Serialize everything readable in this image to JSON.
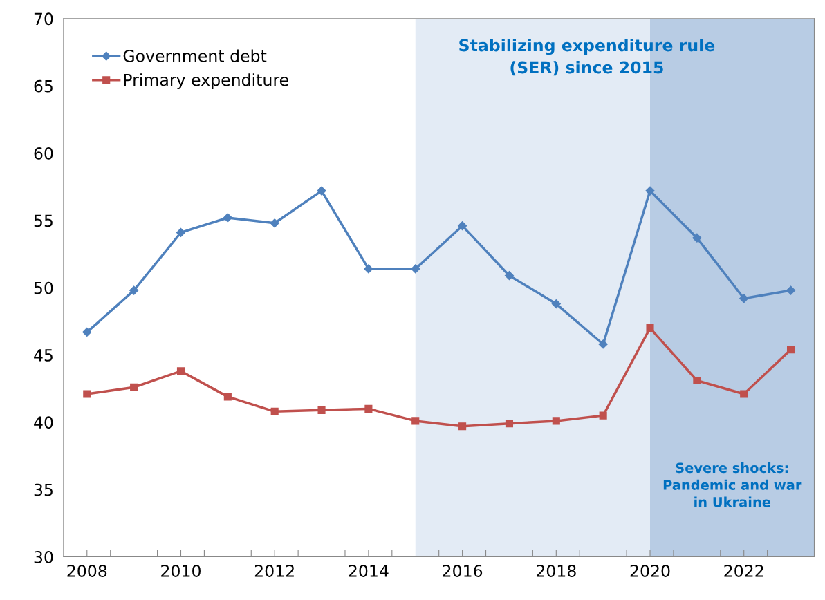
{
  "chart_data": {
    "type": "line",
    "x": [
      2008,
      2009,
      2010,
      2011,
      2012,
      2013,
      2014,
      2015,
      2016,
      2017,
      2018,
      2019,
      2020,
      2021,
      2022,
      2023
    ],
    "series": [
      {
        "name": "Government debt",
        "color": "#4f81bd",
        "marker": "diamond",
        "values": [
          46.7,
          49.8,
          54.1,
          55.2,
          54.8,
          57.2,
          51.4,
          51.4,
          54.6,
          50.9,
          48.8,
          45.8,
          57.2,
          53.7,
          49.2,
          49.8
        ]
      },
      {
        "name": "Primary expenditure",
        "color": "#c0504d",
        "marker": "square",
        "values": [
          42.1,
          42.6,
          43.8,
          41.9,
          40.8,
          40.9,
          41.0,
          40.1,
          39.7,
          39.9,
          40.1,
          40.5,
          47.0,
          43.1,
          42.1,
          45.4
        ]
      }
    ],
    "xlim": [
      2007.5,
      2023.5
    ],
    "xticks": [
      2008,
      {
        "value": 2008.5,
        "label": null
      },
      2010,
      {
        "value": 2010.5,
        "label": null
      },
      2012,
      {
        "value": 2012.5,
        "label": null
      },
      2014,
      {
        "value": 2014.5,
        "label": null
      },
      2016,
      {
        "value": 2016.5,
        "label": null
      },
      2018,
      {
        "value": 2018.5,
        "label": null
      },
      2020,
      {
        "value": 2020.5,
        "label": null
      },
      2022,
      {
        "value": 2022.5,
        "label": null
      },
      {
        "value": 2009.5,
        "label": null
      },
      {
        "value": 2011.5,
        "label": null
      },
      {
        "value": 2013.5,
        "label": null
      },
      {
        "value": 2015.5,
        "label": null
      },
      {
        "value": 2017.5,
        "label": null
      },
      {
        "value": 2019.5,
        "label": null
      },
      {
        "value": 2021.5,
        "label": null
      }
    ],
    "ylim": [
      30,
      70
    ],
    "yticks": [
      30,
      35,
      40,
      45,
      50,
      55,
      60,
      65,
      70
    ],
    "bands": [
      {
        "axis": "x",
        "from": 2015,
        "to": 2023.5,
        "color": "#e3ebf5",
        "label": "Stabilizing expenditure rule\n(SER) since 2015"
      },
      {
        "axis": "x",
        "from": 2020,
        "to": 2023.5,
        "color": "#b8cce4",
        "label": "Severe shocks:\nPandemic and war\nin Ukraine"
      }
    ],
    "grid": false,
    "legend": "top left",
    "line_style": "solid"
  }
}
